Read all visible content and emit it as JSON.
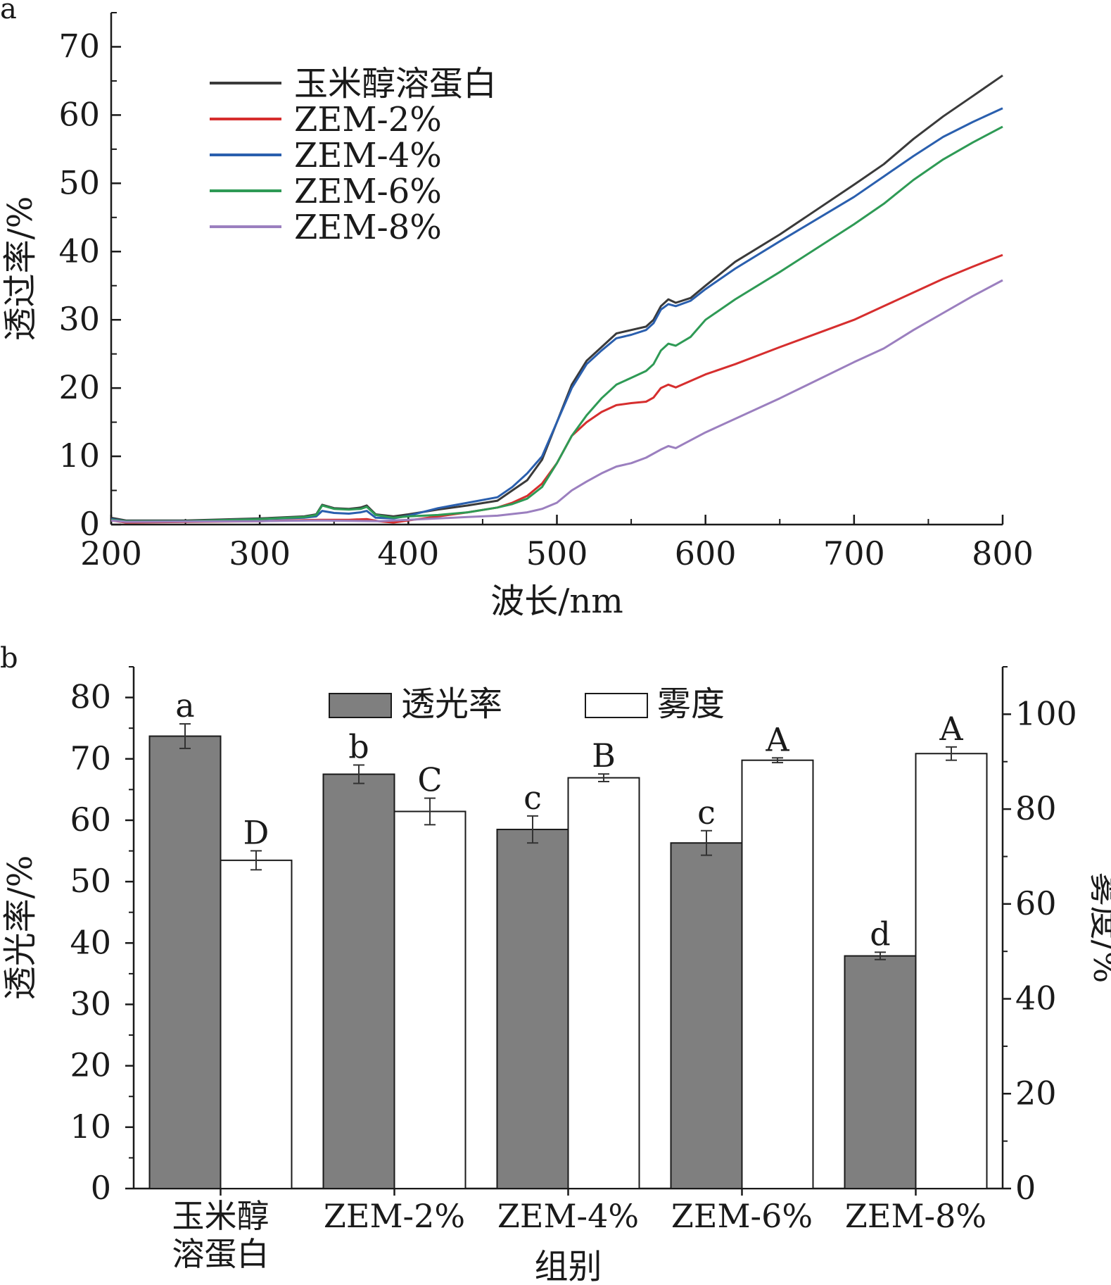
{
  "chart_data": [
    {
      "panel_label": "a",
      "type": "line",
      "xlabel": "波长/nm",
      "ylabel": "透过率/%",
      "xlim": [
        200,
        800
      ],
      "ylim": [
        0,
        75
      ],
      "xticks": [
        200,
        300,
        400,
        500,
        600,
        700,
        800
      ],
      "xtick_labels": [
        "200",
        "300",
        "400",
        "500",
        "600",
        "700",
        "800"
      ],
      "yticks": [
        0,
        10,
        20,
        30,
        40,
        50,
        60,
        70
      ],
      "ytick_labels": [
        "0",
        "10",
        "20",
        "30",
        "40",
        "50",
        "60",
        "70"
      ],
      "legend_position": "top-left",
      "series": [
        {
          "name": "玉米醇溶蛋白",
          "color": "#3a3a3a",
          "points": [
            [
              200,
              1.0
            ],
            [
              210,
              0.6
            ],
            [
              250,
              0.6
            ],
            [
              300,
              0.9
            ],
            [
              330,
              1.2
            ],
            [
              338,
              1.5
            ],
            [
              342,
              2.9
            ],
            [
              350,
              2.4
            ],
            [
              360,
              2.3
            ],
            [
              368,
              2.5
            ],
            [
              372,
              2.8
            ],
            [
              378,
              1.5
            ],
            [
              390,
              1.2
            ],
            [
              400,
              1.5
            ],
            [
              420,
              2.2
            ],
            [
              440,
              2.8
            ],
            [
              460,
              3.5
            ],
            [
              470,
              5.0
            ],
            [
              480,
              6.5
            ],
            [
              490,
              9.5
            ],
            [
              500,
              15.0
            ],
            [
              510,
              20.5
            ],
            [
              520,
              24.0
            ],
            [
              530,
              26.0
            ],
            [
              540,
              28.0
            ],
            [
              550,
              28.5
            ],
            [
              560,
              29.0
            ],
            [
              565,
              30.0
            ],
            [
              570,
              32.0
            ],
            [
              575,
              33.0
            ],
            [
              580,
              32.5
            ],
            [
              590,
              33.2
            ],
            [
              600,
              35.0
            ],
            [
              620,
              38.5
            ],
            [
              650,
              42.5
            ],
            [
              700,
              49.8
            ],
            [
              720,
              52.8
            ],
            [
              740,
              56.5
            ],
            [
              760,
              59.8
            ],
            [
              780,
              62.8
            ],
            [
              800,
              65.8
            ]
          ]
        },
        {
          "name": "ZEM-2%",
          "color": "#d62e2e",
          "points": [
            [
              200,
              0.6
            ],
            [
              210,
              0.3
            ],
            [
              300,
              0.5
            ],
            [
              340,
              0.7
            ],
            [
              360,
              0.7
            ],
            [
              372,
              0.8
            ],
            [
              380,
              0.5
            ],
            [
              390,
              0.3
            ],
            [
              400,
              0.6
            ],
            [
              420,
              1.2
            ],
            [
              440,
              1.8
            ],
            [
              460,
              2.5
            ],
            [
              470,
              3.2
            ],
            [
              480,
              4.2
            ],
            [
              490,
              6.0
            ],
            [
              500,
              9.0
            ],
            [
              510,
              13.0
            ],
            [
              520,
              15.0
            ],
            [
              530,
              16.5
            ],
            [
              540,
              17.5
            ],
            [
              550,
              17.8
            ],
            [
              560,
              18.0
            ],
            [
              565,
              18.6
            ],
            [
              570,
              20.0
            ],
            [
              575,
              20.5
            ],
            [
              580,
              20.1
            ],
            [
              600,
              22.0
            ],
            [
              620,
              23.5
            ],
            [
              650,
              26.0
            ],
            [
              700,
              30.0
            ],
            [
              720,
              32.0
            ],
            [
              740,
              34.0
            ],
            [
              760,
              36.0
            ],
            [
              780,
              37.8
            ],
            [
              800,
              39.5
            ]
          ]
        },
        {
          "name": "ZEM-4%",
          "color": "#2a5fae",
          "points": [
            [
              200,
              0.8
            ],
            [
              210,
              0.5
            ],
            [
              250,
              0.5
            ],
            [
              300,
              0.8
            ],
            [
              330,
              1.0
            ],
            [
              338,
              1.2
            ],
            [
              342,
              2.0
            ],
            [
              350,
              1.7
            ],
            [
              360,
              1.6
            ],
            [
              368,
              1.8
            ],
            [
              372,
              2.0
            ],
            [
              378,
              1.0
            ],
            [
              390,
              0.9
            ],
            [
              400,
              1.3
            ],
            [
              420,
              2.4
            ],
            [
              440,
              3.2
            ],
            [
              460,
              4.0
            ],
            [
              470,
              5.5
            ],
            [
              480,
              7.5
            ],
            [
              490,
              10.0
            ],
            [
              500,
              15.0
            ],
            [
              510,
              20.0
            ],
            [
              520,
              23.5
            ],
            [
              530,
              25.5
            ],
            [
              540,
              27.3
            ],
            [
              550,
              27.8
            ],
            [
              560,
              28.5
            ],
            [
              565,
              29.5
            ],
            [
              570,
              31.5
            ],
            [
              575,
              32.3
            ],
            [
              580,
              32.0
            ],
            [
              590,
              32.8
            ],
            [
              600,
              34.5
            ],
            [
              620,
              37.5
            ],
            [
              650,
              41.5
            ],
            [
              700,
              48.0
            ],
            [
              720,
              51.0
            ],
            [
              740,
              54.0
            ],
            [
              760,
              56.8
            ],
            [
              780,
              59.0
            ],
            [
              800,
              61.0
            ]
          ]
        },
        {
          "name": "ZEM-6%",
          "color": "#2e9a55",
          "points": [
            [
              200,
              0.7
            ],
            [
              210,
              0.5
            ],
            [
              250,
              0.5
            ],
            [
              300,
              0.8
            ],
            [
              330,
              1.1
            ],
            [
              338,
              1.4
            ],
            [
              342,
              2.8
            ],
            [
              350,
              2.3
            ],
            [
              360,
              2.2
            ],
            [
              368,
              2.3
            ],
            [
              372,
              2.6
            ],
            [
              378,
              1.4
            ],
            [
              390,
              1.0
            ],
            [
              400,
              1.2
            ],
            [
              420,
              1.4
            ],
            [
              440,
              1.8
            ],
            [
              460,
              2.5
            ],
            [
              470,
              3.0
            ],
            [
              480,
              3.8
            ],
            [
              490,
              5.5
            ],
            [
              500,
              9.0
            ],
            [
              510,
              13.0
            ],
            [
              520,
              16.0
            ],
            [
              530,
              18.5
            ],
            [
              540,
              20.5
            ],
            [
              550,
              21.5
            ],
            [
              560,
              22.5
            ],
            [
              565,
              23.5
            ],
            [
              570,
              25.5
            ],
            [
              575,
              26.5
            ],
            [
              580,
              26.2
            ],
            [
              590,
              27.5
            ],
            [
              600,
              30.0
            ],
            [
              620,
              33.0
            ],
            [
              650,
              37.0
            ],
            [
              700,
              44.0
            ],
            [
              720,
              47.0
            ],
            [
              740,
              50.5
            ],
            [
              760,
              53.5
            ],
            [
              780,
              56.0
            ],
            [
              800,
              58.3
            ]
          ]
        },
        {
          "name": "ZEM-8%",
          "color": "#9b7fbf",
          "points": [
            [
              200,
              0.6
            ],
            [
              210,
              0.4
            ],
            [
              300,
              0.5
            ],
            [
              340,
              0.6
            ],
            [
              380,
              0.5
            ],
            [
              400,
              0.7
            ],
            [
              420,
              0.9
            ],
            [
              440,
              1.1
            ],
            [
              460,
              1.3
            ],
            [
              480,
              1.8
            ],
            [
              490,
              2.3
            ],
            [
              500,
              3.2
            ],
            [
              510,
              5.0
            ],
            [
              520,
              6.3
            ],
            [
              530,
              7.5
            ],
            [
              540,
              8.5
            ],
            [
              550,
              9.0
            ],
            [
              560,
              9.8
            ],
            [
              570,
              11.0
            ],
            [
              575,
              11.5
            ],
            [
              580,
              11.2
            ],
            [
              600,
              13.5
            ],
            [
              650,
              18.5
            ],
            [
              700,
              23.8
            ],
            [
              720,
              25.8
            ],
            [
              740,
              28.5
            ],
            [
              760,
              31.0
            ],
            [
              780,
              33.5
            ],
            [
              800,
              35.8
            ]
          ]
        }
      ]
    },
    {
      "panel_label": "b",
      "type": "bar",
      "xlabel": "组别",
      "ylabel": "透光率/%",
      "ylabel_right": "雾度/%",
      "categories": [
        "玉米醇\n溶蛋白",
        "ZEM-2%",
        "ZEM-4%",
        "ZEM-6%",
        "ZEM-8%"
      ],
      "ylim": [
        0,
        85
      ],
      "ylim_right": [
        0,
        110
      ],
      "yticks": [
        0,
        10,
        20,
        30,
        40,
        50,
        60,
        70,
        80
      ],
      "ytick_labels": [
        "0",
        "10",
        "20",
        "30",
        "40",
        "50",
        "60",
        "70",
        "80"
      ],
      "yticks_right": [
        0,
        20,
        40,
        60,
        80,
        100
      ],
      "ytick_labels_right": [
        "0",
        "20",
        "40",
        "60",
        "80",
        "100"
      ],
      "legend_position": "top-center",
      "series": [
        {
          "name": "透光率",
          "axis": "left",
          "color": "#7f7f7f",
          "values": [
            73.7,
            67.5,
            58.5,
            56.3,
            37.9
          ],
          "errors": [
            2.0,
            1.5,
            2.2,
            2.0,
            0.6
          ],
          "labels": [
            "a",
            "b",
            "c",
            "c",
            "d"
          ]
        },
        {
          "name": "雾度",
          "axis": "right",
          "color": "#ffffff",
          "values": [
            69.2,
            79.5,
            86.6,
            90.3,
            91.7
          ],
          "errors": [
            2.0,
            2.8,
            0.8,
            0.5,
            1.4
          ],
          "labels": [
            "D",
            "C",
            "B",
            "A",
            "A"
          ]
        }
      ]
    }
  ]
}
